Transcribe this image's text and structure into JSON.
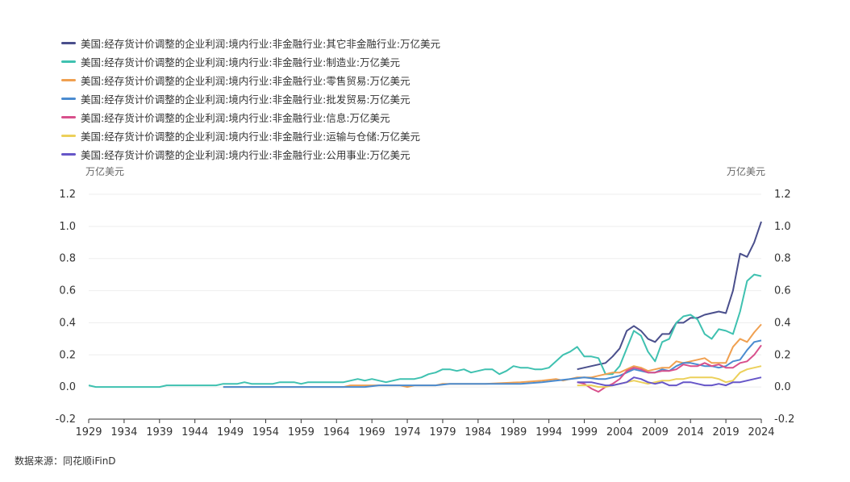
{
  "chart_data": {
    "type": "line",
    "y_unit_left": "万亿美元",
    "y_unit_right": "万亿美元",
    "ylim": [
      -0.2,
      1.2
    ],
    "y_ticks": [
      "-0.2",
      "0.0",
      "0.2",
      "0.4",
      "0.6",
      "0.8",
      "1.0",
      "1.2"
    ],
    "xlim": [
      1929,
      2024
    ],
    "x_ticks": [
      "1929",
      "1934",
      "1939",
      "1944",
      "1949",
      "1954",
      "1959",
      "1964",
      "1969",
      "1974",
      "1979",
      "1984",
      "1989",
      "1994",
      "1999",
      "2004",
      "2009",
      "2014",
      "2019",
      "2024"
    ],
    "grid": "horizontal",
    "legend_position": "top-left",
    "source": "数据来源：同花顺iFinD",
    "series": [
      {
        "name": "美国:经存货计价调整的企业利润:境内行业:非金融行业:其它非金融行业:万亿美元",
        "color": "#4a4f8c",
        "points": [
          [
            1998,
            0.11
          ],
          [
            2000,
            0.13
          ],
          [
            2002,
            0.15
          ],
          [
            2003,
            0.19
          ],
          [
            2004,
            0.24
          ],
          [
            2005,
            0.35
          ],
          [
            2006,
            0.38
          ],
          [
            2007,
            0.35
          ],
          [
            2008,
            0.3
          ],
          [
            2009,
            0.28
          ],
          [
            2010,
            0.33
          ],
          [
            2011,
            0.33
          ],
          [
            2012,
            0.4
          ],
          [
            2013,
            0.4
          ],
          [
            2014,
            0.43
          ],
          [
            2015,
            0.43
          ],
          [
            2016,
            0.45
          ],
          [
            2017,
            0.46
          ],
          [
            2018,
            0.47
          ],
          [
            2019,
            0.46
          ],
          [
            2020,
            0.6
          ],
          [
            2021,
            0.83
          ],
          [
            2022,
            0.81
          ],
          [
            2023,
            0.9
          ],
          [
            2024,
            1.03
          ]
        ]
      },
      {
        "name": "美国:经存货计价调整的企业利润:境内行业:非金融行业:制造业:万亿美元",
        "color": "#3fc1b0",
        "points": [
          [
            1929,
            0.01
          ],
          [
            1930,
            0.0
          ],
          [
            1932,
            0.0
          ],
          [
            1935,
            0.0
          ],
          [
            1938,
            0.0
          ],
          [
            1939,
            0.0
          ],
          [
            1940,
            0.01
          ],
          [
            1945,
            0.01
          ],
          [
            1947,
            0.01
          ],
          [
            1948,
            0.02
          ],
          [
            1950,
            0.02
          ],
          [
            1951,
            0.03
          ],
          [
            1952,
            0.02
          ],
          [
            1955,
            0.02
          ],
          [
            1956,
            0.03
          ],
          [
            1958,
            0.03
          ],
          [
            1959,
            0.02
          ],
          [
            1960,
            0.03
          ],
          [
            1965,
            0.03
          ],
          [
            1966,
            0.04
          ],
          [
            1967,
            0.05
          ],
          [
            1968,
            0.04
          ],
          [
            1969,
            0.05
          ],
          [
            1970,
            0.04
          ],
          [
            1971,
            0.03
          ],
          [
            1972,
            0.04
          ],
          [
            1973,
            0.05
          ],
          [
            1975,
            0.05
          ],
          [
            1976,
            0.06
          ],
          [
            1977,
            0.08
          ],
          [
            1978,
            0.09
          ],
          [
            1979,
            0.11
          ],
          [
            1980,
            0.11
          ],
          [
            1981,
            0.1
          ],
          [
            1982,
            0.11
          ],
          [
            1983,
            0.09
          ],
          [
            1984,
            0.1
          ],
          [
            1985,
            0.11
          ],
          [
            1986,
            0.11
          ],
          [
            1987,
            0.08
          ],
          [
            1988,
            0.1
          ],
          [
            1989,
            0.13
          ],
          [
            1990,
            0.12
          ],
          [
            1991,
            0.12
          ],
          [
            1992,
            0.11
          ],
          [
            1993,
            0.11
          ],
          [
            1994,
            0.12
          ],
          [
            1995,
            0.16
          ],
          [
            1996,
            0.2
          ],
          [
            1997,
            0.22
          ],
          [
            1998,
            0.25
          ],
          [
            1999,
            0.19
          ],
          [
            2000,
            0.19
          ],
          [
            2001,
            0.18
          ],
          [
            2002,
            0.08
          ],
          [
            2003,
            0.08
          ],
          [
            2004,
            0.13
          ],
          [
            2005,
            0.24
          ],
          [
            2006,
            0.35
          ],
          [
            2007,
            0.32
          ],
          [
            2008,
            0.22
          ],
          [
            2009,
            0.16
          ],
          [
            2010,
            0.28
          ],
          [
            2011,
            0.3
          ],
          [
            2012,
            0.4
          ],
          [
            2013,
            0.44
          ],
          [
            2014,
            0.45
          ],
          [
            2015,
            0.42
          ],
          [
            2016,
            0.33
          ],
          [
            2017,
            0.3
          ],
          [
            2018,
            0.36
          ],
          [
            2019,
            0.35
          ],
          [
            2020,
            0.33
          ],
          [
            2021,
            0.47
          ],
          [
            2022,
            0.66
          ],
          [
            2023,
            0.7
          ],
          [
            2024,
            0.69
          ]
        ]
      },
      {
        "name": "美国:经存货计价调整的企业利润:境内行业:非金融行业:零售贸易:万亿美元",
        "color": "#f0a050",
        "points": [
          [
            1948,
            0.0
          ],
          [
            1965,
            0.0
          ],
          [
            1966,
            0.01
          ],
          [
            1970,
            0.01
          ],
          [
            1973,
            0.01
          ],
          [
            1974,
            0.0
          ],
          [
            1975,
            0.01
          ],
          [
            1978,
            0.01
          ],
          [
            1979,
            0.02
          ],
          [
            1985,
            0.02
          ],
          [
            1990,
            0.03
          ],
          [
            1993,
            0.04
          ],
          [
            1995,
            0.05
          ],
          [
            1996,
            0.04
          ],
          [
            1998,
            0.06
          ],
          [
            2000,
            0.06
          ],
          [
            2001,
            0.07
          ],
          [
            2002,
            0.08
          ],
          [
            2003,
            0.09
          ],
          [
            2004,
            0.09
          ],
          [
            2005,
            0.11
          ],
          [
            2006,
            0.13
          ],
          [
            2007,
            0.12
          ],
          [
            2008,
            0.1
          ],
          [
            2009,
            0.11
          ],
          [
            2010,
            0.12
          ],
          [
            2011,
            0.12
          ],
          [
            2012,
            0.16
          ],
          [
            2013,
            0.15
          ],
          [
            2014,
            0.16
          ],
          [
            2015,
            0.17
          ],
          [
            2016,
            0.18
          ],
          [
            2017,
            0.15
          ],
          [
            2018,
            0.15
          ],
          [
            2019,
            0.15
          ],
          [
            2020,
            0.25
          ],
          [
            2021,
            0.3
          ],
          [
            2022,
            0.28
          ],
          [
            2023,
            0.34
          ],
          [
            2024,
            0.39
          ]
        ]
      },
      {
        "name": "美国:经存货计价调整的企业利润:境内行业:非金融行业:批发贸易:万亿美元",
        "color": "#4a8bd0",
        "points": [
          [
            1948,
            0.0
          ],
          [
            1968,
            0.0
          ],
          [
            1970,
            0.01
          ],
          [
            1978,
            0.01
          ],
          [
            1980,
            0.02
          ],
          [
            1985,
            0.02
          ],
          [
            1990,
            0.02
          ],
          [
            1993,
            0.03
          ],
          [
            1995,
            0.04
          ],
          [
            1997,
            0.05
          ],
          [
            1999,
            0.06
          ],
          [
            2001,
            0.05
          ],
          [
            2002,
            0.05
          ],
          [
            2004,
            0.07
          ],
          [
            2005,
            0.09
          ],
          [
            2006,
            0.11
          ],
          [
            2007,
            0.1
          ],
          [
            2008,
            0.09
          ],
          [
            2009,
            0.09
          ],
          [
            2010,
            0.11
          ],
          [
            2011,
            0.1
          ],
          [
            2012,
            0.13
          ],
          [
            2013,
            0.15
          ],
          [
            2014,
            0.15
          ],
          [
            2015,
            0.14
          ],
          [
            2016,
            0.13
          ],
          [
            2017,
            0.13
          ],
          [
            2018,
            0.12
          ],
          [
            2019,
            0.13
          ],
          [
            2020,
            0.16
          ],
          [
            2021,
            0.17
          ],
          [
            2022,
            0.23
          ],
          [
            2023,
            0.28
          ],
          [
            2024,
            0.29
          ]
        ]
      },
      {
        "name": "美国:经存货计价调整的企业利润:境内行业:非金融行业:信息:万亿美元",
        "color": "#d8508c",
        "points": [
          [
            1998,
            0.03
          ],
          [
            1999,
            0.02
          ],
          [
            2000,
            -0.01
          ],
          [
            2001,
            -0.03
          ],
          [
            2002,
            0.0
          ],
          [
            2003,
            0.02
          ],
          [
            2004,
            0.05
          ],
          [
            2005,
            0.1
          ],
          [
            2006,
            0.12
          ],
          [
            2007,
            0.11
          ],
          [
            2008,
            0.09
          ],
          [
            2009,
            0.09
          ],
          [
            2010,
            0.1
          ],
          [
            2011,
            0.1
          ],
          [
            2012,
            0.11
          ],
          [
            2013,
            0.14
          ],
          [
            2014,
            0.13
          ],
          [
            2015,
            0.13
          ],
          [
            2016,
            0.15
          ],
          [
            2017,
            0.13
          ],
          [
            2018,
            0.14
          ],
          [
            2019,
            0.12
          ],
          [
            2020,
            0.12
          ],
          [
            2021,
            0.15
          ],
          [
            2022,
            0.16
          ],
          [
            2023,
            0.2
          ],
          [
            2024,
            0.26
          ]
        ]
      },
      {
        "name": "美国:经存货计价调整的企业利润:境内行业:非金融行业:运输与仓储:万亿美元",
        "color": "#ecd05a",
        "points": [
          [
            1998,
            0.01
          ],
          [
            2000,
            0.01
          ],
          [
            2001,
            0.0
          ],
          [
            2002,
            0.0
          ],
          [
            2003,
            0.01
          ],
          [
            2004,
            0.02
          ],
          [
            2005,
            0.03
          ],
          [
            2006,
            0.04
          ],
          [
            2007,
            0.03
          ],
          [
            2008,
            0.02
          ],
          [
            2009,
            0.03
          ],
          [
            2010,
            0.04
          ],
          [
            2011,
            0.04
          ],
          [
            2012,
            0.05
          ],
          [
            2013,
            0.05
          ],
          [
            2014,
            0.06
          ],
          [
            2015,
            0.06
          ],
          [
            2016,
            0.06
          ],
          [
            2017,
            0.06
          ],
          [
            2018,
            0.05
          ],
          [
            2019,
            0.03
          ],
          [
            2020,
            0.04
          ],
          [
            2021,
            0.09
          ],
          [
            2022,
            0.11
          ],
          [
            2023,
            0.12
          ],
          [
            2024,
            0.13
          ]
        ]
      },
      {
        "name": "美国:经存货计价调整的企业利润:境内行业:非金融行业:公用事业:万亿美元",
        "color": "#6656c8",
        "points": [
          [
            1998,
            0.03
          ],
          [
            2000,
            0.03
          ],
          [
            2001,
            0.02
          ],
          [
            2002,
            0.01
          ],
          [
            2003,
            0.01
          ],
          [
            2004,
            0.02
          ],
          [
            2005,
            0.03
          ],
          [
            2006,
            0.06
          ],
          [
            2007,
            0.05
          ],
          [
            2008,
            0.03
          ],
          [
            2009,
            0.02
          ],
          [
            2010,
            0.03
          ],
          [
            2011,
            0.01
          ],
          [
            2012,
            0.01
          ],
          [
            2013,
            0.03
          ],
          [
            2014,
            0.03
          ],
          [
            2015,
            0.02
          ],
          [
            2016,
            0.01
          ],
          [
            2017,
            0.01
          ],
          [
            2018,
            0.02
          ],
          [
            2019,
            0.01
          ],
          [
            2020,
            0.03
          ],
          [
            2021,
            0.03
          ],
          [
            2022,
            0.04
          ],
          [
            2023,
            0.05
          ],
          [
            2024,
            0.06
          ]
        ]
      }
    ]
  }
}
